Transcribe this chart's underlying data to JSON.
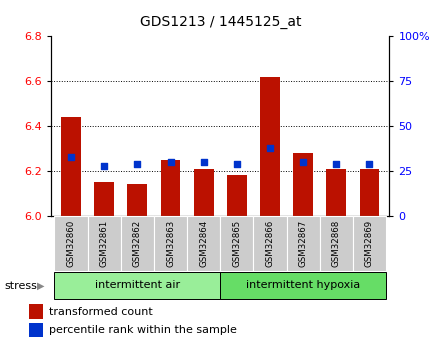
{
  "title": "GDS1213 / 1445125_at",
  "samples": [
    "GSM32860",
    "GSM32861",
    "GSM32862",
    "GSM32863",
    "GSM32864",
    "GSM32865",
    "GSM32866",
    "GSM32867",
    "GSM32868",
    "GSM32869"
  ],
  "red_values": [
    6.44,
    6.15,
    6.14,
    6.25,
    6.21,
    6.18,
    6.62,
    6.28,
    6.21,
    6.21
  ],
  "blue_values": [
    6.26,
    6.22,
    6.23,
    6.24,
    6.24,
    6.23,
    6.3,
    6.24,
    6.23,
    6.23
  ],
  "ylim_left": [
    6.0,
    6.8
  ],
  "ylim_right": [
    0,
    100
  ],
  "yticks_left": [
    6.0,
    6.2,
    6.4,
    6.6,
    6.8
  ],
  "yticks_right": [
    0,
    25,
    50,
    75,
    100
  ],
  "base_value": 6.0,
  "bar_width": 0.6,
  "groups": [
    {
      "label": "intermittent air",
      "start": 0,
      "end": 4,
      "color": "#99ee99"
    },
    {
      "label": "intermittent hypoxia",
      "start": 5,
      "end": 9,
      "color": "#66dd66"
    }
  ],
  "stress_label": "stress",
  "legend_red": "transformed count",
  "legend_blue": "percentile rank within the sample",
  "red_color": "#bb1100",
  "blue_color": "#0033cc",
  "bg_color": "#ffffff",
  "plot_bg": "#ffffff",
  "tick_label_area_color": "#cccccc",
  "title_fontsize": 10,
  "axis_fontsize": 8,
  "legend_fontsize": 8,
  "dotted_grid_lines": [
    6.2,
    6.4,
    6.6
  ],
  "blue_square_size": 18
}
